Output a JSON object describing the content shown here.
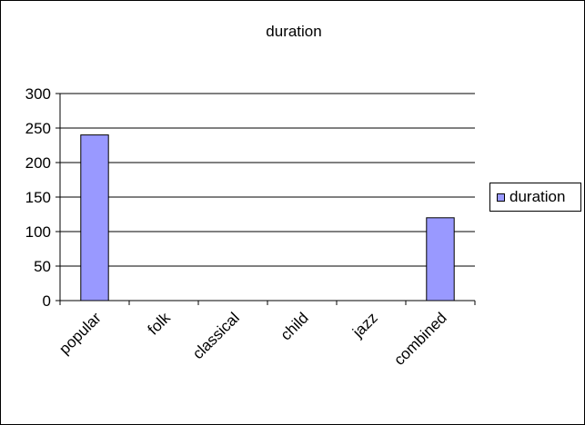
{
  "chart_data": {
    "type": "bar",
    "title": "duration",
    "xlabel": "",
    "ylabel": "",
    "categories": [
      "popular",
      "folk",
      "classical",
      "child",
      "jazz",
      "combined"
    ],
    "series": [
      {
        "name": "duration",
        "values": [
          240,
          0,
          0,
          0,
          0,
          120
        ],
        "color": "#9999ff"
      }
    ],
    "ylim": [
      0,
      300
    ],
    "yticks": [
      0,
      50,
      100,
      150,
      200,
      250,
      300
    ],
    "grid": true,
    "legend": "right"
  }
}
